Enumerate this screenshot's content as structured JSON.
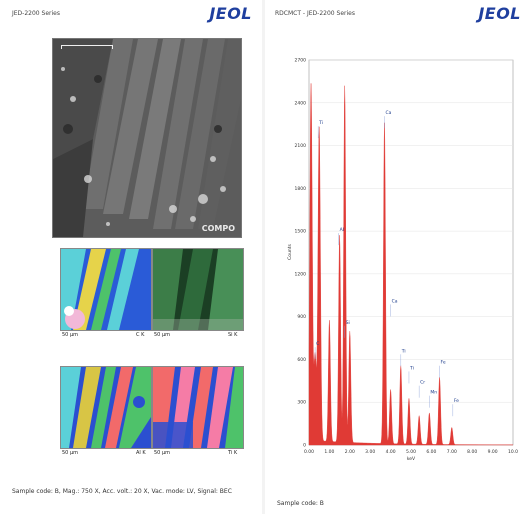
{
  "left_page": {
    "header_title": "JED-2200 Series",
    "logo": "JEOL",
    "sem_image": {
      "label": "COMPO"
    },
    "maps": [
      {
        "scale": "50 μm",
        "element": "C K"
      },
      {
        "scale": "50 μm",
        "element": "Si K"
      },
      {
        "scale": "50 μm",
        "element": "Al K"
      },
      {
        "scale": "50 μm",
        "element": "Ti K"
      }
    ],
    "footer": "Sample code: B, Mag.: 750 X, Acc. volt.: 20 X, Vac. mode: LV, Signal: BEC"
  },
  "right_page": {
    "header_title": "RDCMCT - JED-2200 Series",
    "logo": "JEOL",
    "footer": "Sample code: B"
  },
  "chart_data": {
    "type": "area",
    "xlabel": "keV",
    "ylabel": "Counts",
    "xlim": [
      0.0,
      10.0
    ],
    "ylim": [
      0,
      2500
    ],
    "x_ticks": [
      "0.00",
      "1.00",
      "2.00",
      "3.00",
      "4.00",
      "5.00",
      "6.00",
      "7.00",
      "8.00",
      "9.00",
      "10.0"
    ],
    "y_ticks": [
      "0",
      "300",
      "600",
      "900",
      "1200",
      "1500",
      "1800",
      "2100",
      "2400",
      "2700"
    ],
    "fill_color": "#e03a35",
    "peaks": [
      {
        "keV": 0.1,
        "height": 2500
      },
      {
        "keV": 0.3,
        "height": 600
      },
      {
        "keV": 0.5,
        "height": 2200
      },
      {
        "keV": 1.0,
        "height": 850
      },
      {
        "keV": 1.5,
        "height": 1450
      },
      {
        "keV": 1.75,
        "height": 2500
      },
      {
        "keV": 2.0,
        "height": 780
      },
      {
        "keV": 3.7,
        "height": 2250
      },
      {
        "keV": 4.0,
        "height": 380
      },
      {
        "keV": 4.5,
        "height": 550
      },
      {
        "keV": 4.9,
        "height": 320
      },
      {
        "keV": 5.4,
        "height": 200
      },
      {
        "keV": 5.9,
        "height": 220
      },
      {
        "keV": 6.4,
        "height": 470
      },
      {
        "keV": 7.0,
        "height": 120
      }
    ],
    "peak_labels": [
      {
        "text": "C",
        "keV": 0.3,
        "counts": 700
      },
      {
        "text": "Ti",
        "keV": 0.45,
        "counts": 2250
      },
      {
        "text": "Al",
        "keV": 1.45,
        "counts": 1500
      },
      {
        "text": "Si",
        "keV": 1.75,
        "counts": 850
      },
      {
        "text": "Ca",
        "keV": 3.7,
        "counts": 2320
      },
      {
        "text": "Ca",
        "keV": 4.0,
        "counts": 1000
      },
      {
        "text": "Ti",
        "keV": 4.5,
        "counts": 650
      },
      {
        "text": "Ti",
        "keV": 4.9,
        "counts": 530
      },
      {
        "text": "Cr",
        "keV": 5.4,
        "counts": 430
      },
      {
        "text": "Mn",
        "keV": 5.9,
        "counts": 360
      },
      {
        "text": "Fe",
        "keV": 6.4,
        "counts": 570
      },
      {
        "text": "Fe",
        "keV": 7.05,
        "counts": 300
      }
    ]
  }
}
